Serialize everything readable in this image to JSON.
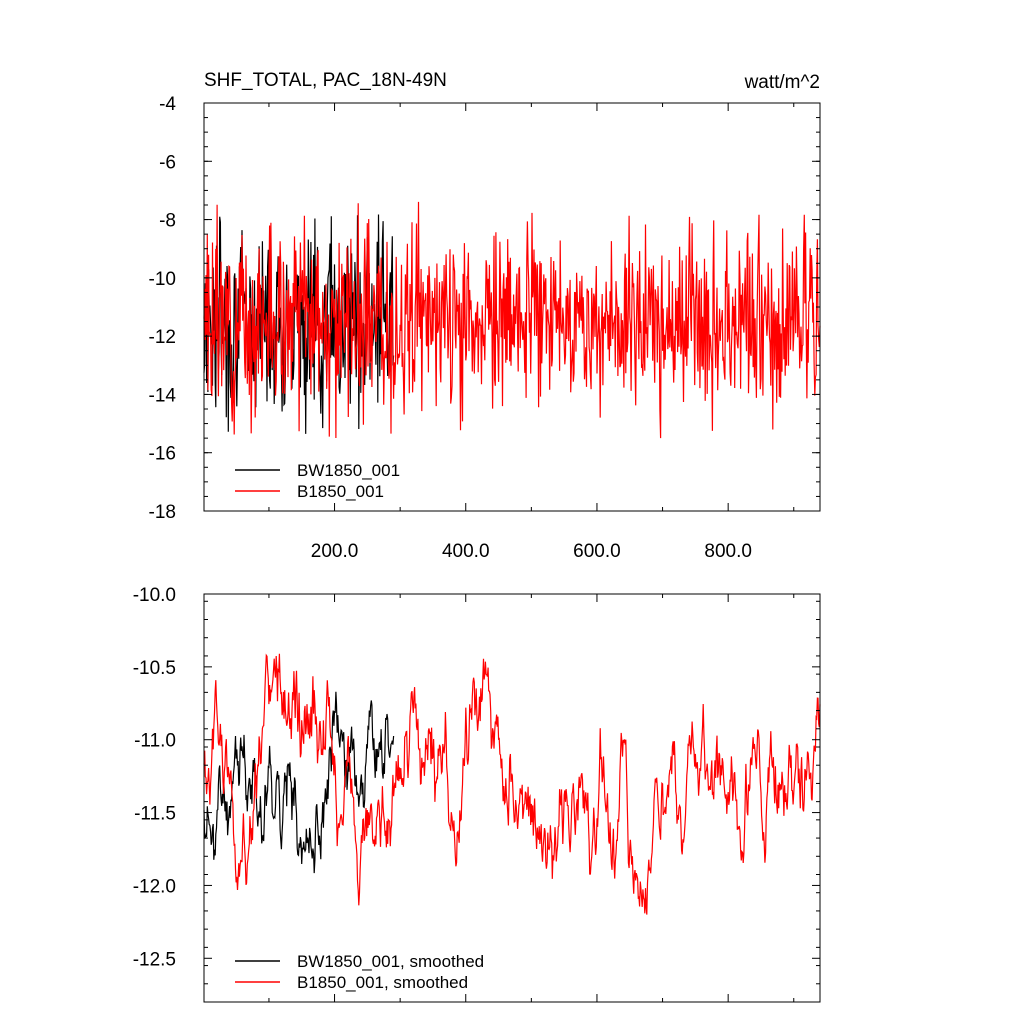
{
  "chart_data": [
    {
      "type": "line",
      "title": "SHF_TOTAL, PAC_18N-49N",
      "units": "watt/m^2",
      "xlim": [
        1,
        940
      ],
      "ylim": [
        -18,
        -4
      ],
      "yticks": [
        -4,
        -6,
        -8,
        -10,
        -12,
        -14,
        -16,
        -18
      ],
      "ytick_labels": [
        "-4",
        "-6",
        "-8",
        "-10",
        "-12",
        "-14",
        "-16",
        "-18"
      ],
      "xticks": [
        200,
        400,
        600,
        800
      ],
      "xtick_labels": [
        "200.0",
        "400.0",
        "600.0",
        "800.0"
      ],
      "series": [
        {
          "name": "BW1850_001",
          "color": "#000000",
          "x_end": 290,
          "mean": -11.4,
          "amp": 1.6,
          "seed": 7
        },
        {
          "name": "B1850_001",
          "color": "#ff0000",
          "x_end": 940,
          "mean": -11.5,
          "amp": 1.5,
          "seed": 3
        }
      ],
      "legend": {
        "position": "bottom-left"
      }
    },
    {
      "type": "line",
      "title": "",
      "xlim": [
        1,
        940
      ],
      "ylim": [
        -12.8,
        -10.0
      ],
      "yticks": [
        -10.0,
        -10.5,
        -11.0,
        -11.5,
        -12.0,
        -12.5
      ],
      "ytick_labels": [
        "-10.0",
        "-10.5",
        "-11.0",
        "-11.5",
        "-12.0",
        "-12.5"
      ],
      "xticks": [
        200,
        400,
        600,
        800
      ],
      "xtick_labels": [],
      "series": [
        {
          "name": "BW1850_001, smoothed",
          "color": "#000000",
          "x_end": 290,
          "mean": -11.55,
          "amp": 0.45,
          "seed": 11
        },
        {
          "name": "B1850_001, smoothed",
          "color": "#ff0000",
          "x_end": 940,
          "mean": -11.3,
          "amp": 0.5,
          "seed": 5
        }
      ],
      "legend": {
        "position": "bottom-left"
      }
    }
  ]
}
